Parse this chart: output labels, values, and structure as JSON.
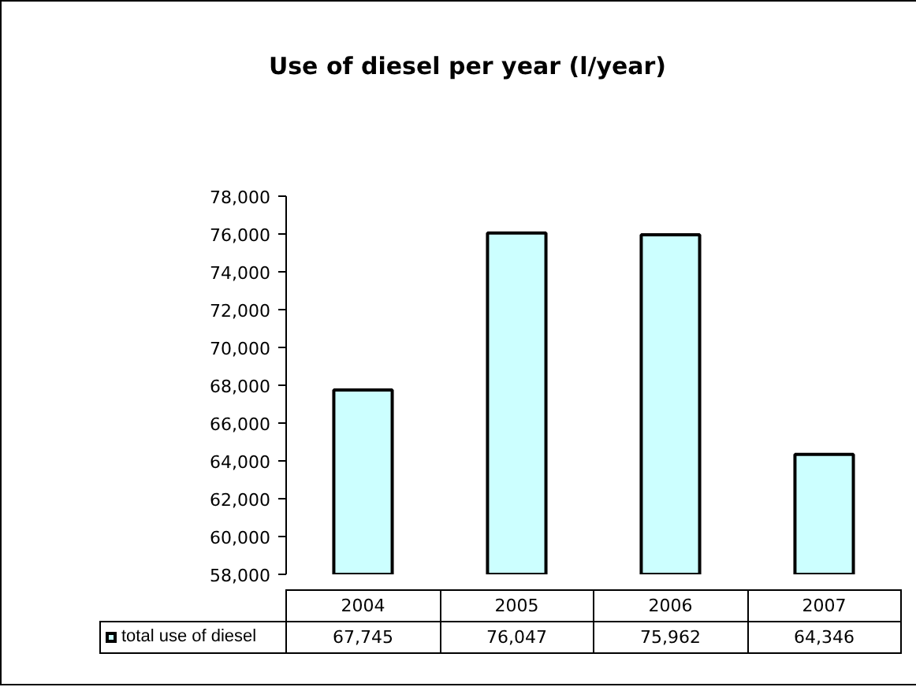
{
  "chart_data": {
    "type": "bar",
    "title": "Use of diesel per year (l/year)",
    "categories": [
      "2004",
      "2005",
      "2006",
      "2007"
    ],
    "series": [
      {
        "name": "total use of diesel",
        "color": "#ccffff",
        "values": [
          67745,
          76047,
          75962,
          64346
        ],
        "value_labels": [
          "67,745",
          "76,047",
          "75,962",
          "64,346"
        ]
      }
    ],
    "ylim": [
      58000,
      78000
    ],
    "yticks": [
      {
        "value": 58000,
        "label": "58,000"
      },
      {
        "value": 60000,
        "label": "60,000"
      },
      {
        "value": 62000,
        "label": "62,000"
      },
      {
        "value": 64000,
        "label": "64,000"
      },
      {
        "value": 66000,
        "label": "66,000"
      },
      {
        "value": 68000,
        "label": "68,000"
      },
      {
        "value": 70000,
        "label": "70,000"
      },
      {
        "value": 72000,
        "label": "72,000"
      },
      {
        "value": 74000,
        "label": "74,000"
      },
      {
        "value": 76000,
        "label": "76,000"
      },
      {
        "value": 78000,
        "label": "78,000"
      }
    ],
    "grid": false,
    "legend": "bottom"
  }
}
